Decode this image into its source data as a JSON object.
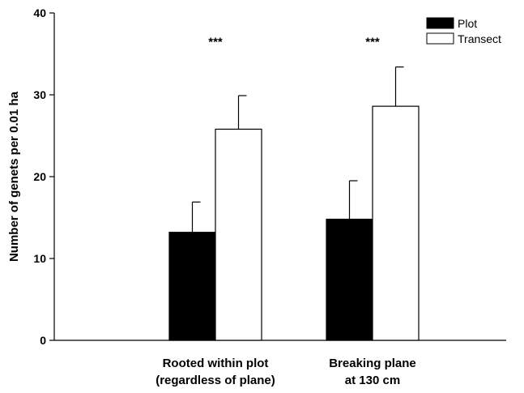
{
  "chart_data": {
    "type": "bar",
    "categories": [
      [
        "Rooted within plot",
        "(regardless of plane)"
      ],
      [
        "Breaking plane",
        "at 130 cm"
      ]
    ],
    "series": [
      {
        "name": "Plot",
        "color": "#000000",
        "values": [
          13.2,
          14.8
        ],
        "errors": [
          3.7,
          4.7
        ]
      },
      {
        "name": "Transect",
        "color": "#ffffff",
        "values": [
          25.8,
          28.6
        ],
        "errors": [
          4.1,
          4.8
        ]
      }
    ],
    "significance": [
      "***",
      "***"
    ],
    "ylabel": "Number of genets per 0.01 ha",
    "xlabel": "",
    "ylim": [
      0,
      40
    ],
    "yticks": [
      0,
      10,
      20,
      30,
      40
    ],
    "legend": "top-right",
    "grid": false
  }
}
